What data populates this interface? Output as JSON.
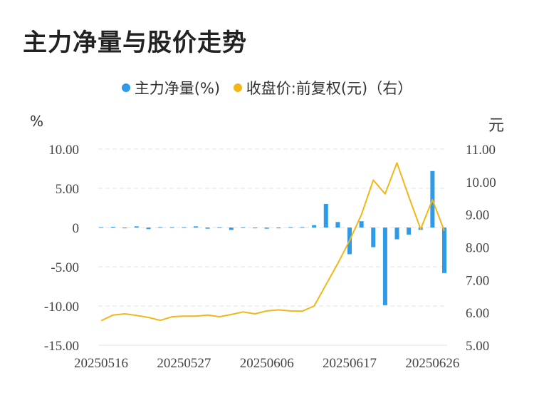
{
  "title": "主力净量与股价走势",
  "legend": {
    "series1": "主力净量(%)",
    "series2": "收盘价:前复权(元)（右）",
    "color1": "#2f9ae8",
    "color2": "#f2b619"
  },
  "axis_units": {
    "left": "%",
    "right": "元"
  },
  "chart_data": {
    "type": "bar",
    "x_tick_labels": [
      "20250516",
      "20250527",
      "20250606",
      "20250617",
      "20250626"
    ],
    "x_tick_indices": [
      0,
      7,
      14,
      21,
      28
    ],
    "y_left": {
      "ticks": [
        "10.00",
        "5.00",
        "0",
        "-5.00",
        "-10.00",
        "-15.00"
      ],
      "values": [
        10,
        5,
        0,
        -5,
        -10,
        -15
      ],
      "ylim": [
        -15,
        10
      ]
    },
    "y_right": {
      "ticks": [
        "11.00",
        "10.00",
        "9.00",
        "8.00",
        "7.00",
        "6.00",
        "5.00"
      ],
      "values": [
        11,
        10,
        9,
        8,
        7,
        6,
        5
      ],
      "ylim": [
        5,
        11
      ]
    },
    "grid": true,
    "legend_position": "top",
    "series": [
      {
        "name": "主力净量(%)",
        "axis": "left",
        "kind": "bar",
        "values": [
          0.05,
          0.1,
          -0.1,
          0.15,
          -0.2,
          0.05,
          0.05,
          0.05,
          0.15,
          -0.15,
          0.05,
          -0.3,
          0.05,
          -0.1,
          -0.15,
          -0.1,
          0.05,
          0.05,
          0.3,
          3.0,
          0.7,
          -3.4,
          0.8,
          -2.5,
          -9.9,
          -1.5,
          -0.9,
          -0.3,
          7.2,
          -5.8
        ]
      },
      {
        "name": "收盘价:前复权(元)（右）",
        "axis": "right",
        "kind": "line",
        "values": [
          5.75,
          5.92,
          5.96,
          5.91,
          5.85,
          5.76,
          5.87,
          5.89,
          5.89,
          5.92,
          5.87,
          5.94,
          6.02,
          5.96,
          6.05,
          6.08,
          6.05,
          6.04,
          6.2,
          6.85,
          7.5,
          8.2,
          9.0,
          10.05,
          9.63,
          10.58,
          9.55,
          8.55,
          9.45,
          8.5
        ]
      }
    ]
  }
}
